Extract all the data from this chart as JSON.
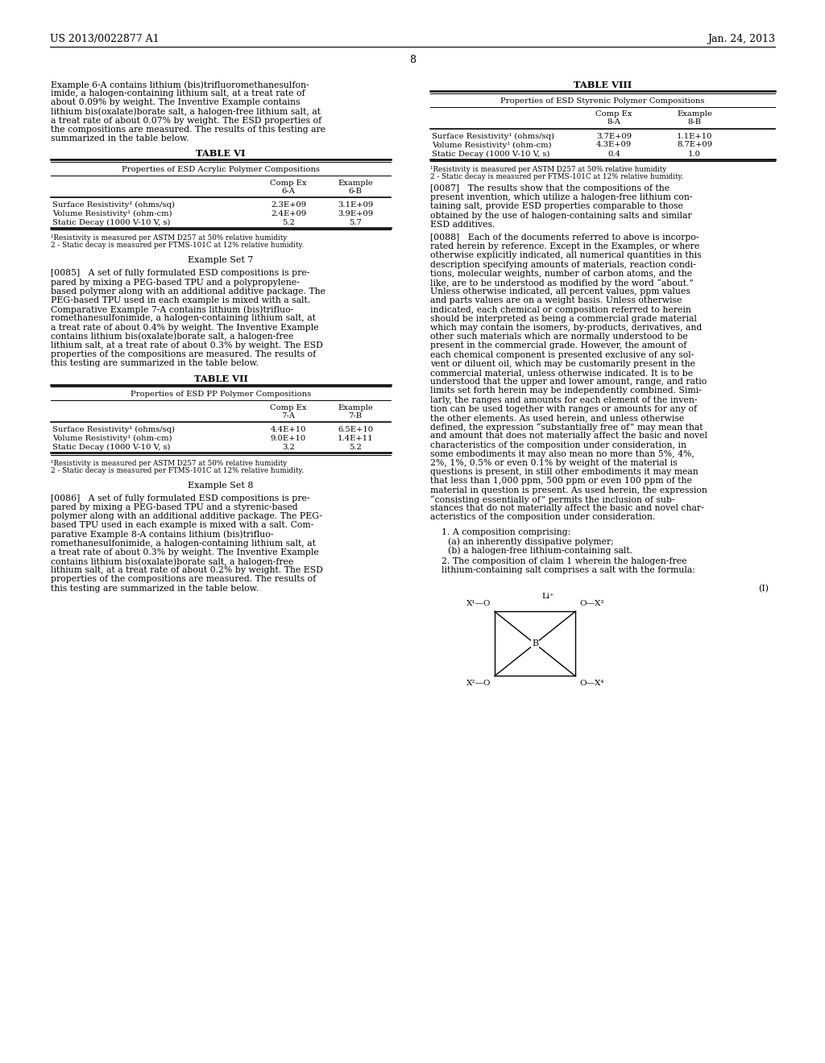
{
  "bg_color": "#ffffff",
  "header_left": "US 2013/0022877 A1",
  "header_right": "Jan. 24, 2013",
  "page_number": "8",
  "left_col": {
    "para1_lines": [
      "Example 6-A contains lithium (bis)trifluoromethanesulfon-",
      "imide, a halogen-containing lithium salt, at a treat rate of",
      "about 0.09% by weight. The Inventive Example contains",
      "lithium bis(oxalate)borate salt, a halogen-free lithium salt, at",
      "a treat rate of about 0.07% by weight. The ESD properties of",
      "the compositions are measured. The results of this testing are",
      "summarized in the table below."
    ],
    "table_vi_title": "TABLE VI",
    "table_vi_subtitle": "Properties of ESD Acrylic Polymer Compositions",
    "table_vi_col2": "Comp Ex\n6-A",
    "table_vi_col3": "Example\n6-B",
    "table_vi_rows": [
      [
        "Surface Resistivity¹ (ohms/sq)",
        "2.3E+09",
        "3.1E+09"
      ],
      [
        "Volume Resistivity¹ (ohm-cm)",
        "2.4E+09",
        "3.9E+09"
      ],
      [
        "Static Decay (1000 V-10 V, s)",
        "5.2",
        "5.7"
      ]
    ],
    "table_vi_fn1": "¹Resistivity is measured per ASTM D257 at 50% relative humidity",
    "table_vi_fn2": "2 - Static decay is measured per FTMS-101C at 12% relative humidity.",
    "ex7_title": "Example Set 7",
    "para_0085_lines": [
      "[0085]   A set of fully formulated ESD compositions is pre-",
      "pared by mixing a PEG-based TPU and a polypropylene-",
      "based polymer along with an additional additive package. The",
      "PEG-based TPU used in each example is mixed with a salt.",
      "Comparative Example 7-A contains lithium (bis)trifluo-",
      "romethanesulfonimide, a halogen-containing lithium salt, at",
      "a treat rate of about 0.4% by weight. The Inventive Example",
      "contains lithium bis(oxalate)borate salt, a halogen-free",
      "lithium salt, at a treat rate of about 0.3% by weight. The ESD",
      "properties of the compositions are measured. The results of",
      "this testing are summarized in the table below."
    ],
    "table_vii_title": "TABLE VII",
    "table_vii_subtitle": "Properties of ESD PP Polymer Compositions",
    "table_vii_col2": "Comp Ex\n7-A",
    "table_vii_col3": "Example\n7-B",
    "table_vii_rows": [
      [
        "Surface Resistivity¹ (ohms/sq)",
        "4.4E+10",
        "6.5E+10"
      ],
      [
        "Volume Resistivity¹ (ohm-cm)",
        "9.0E+10",
        "1.4E+11"
      ],
      [
        "Static Decay (1000 V-10 V, s)",
        "3.2",
        "5.2"
      ]
    ],
    "table_vii_fn1": "¹Resistivity is measured per ASTM D257 at 50% relative humidity",
    "table_vii_fn2": "2 - Static decay is measured per FTMS-101C at 12% relative humidity.",
    "ex8_title": "Example Set 8",
    "para_0086_lines": [
      "[0086]   A set of fully formulated ESD compositions is pre-",
      "pared by mixing a PEG-based TPU and a styrenic-based",
      "polymer along with an additional additive package. The PEG-",
      "based TPU used in each example is mixed with a salt. Com-",
      "parative Example 8-A contains lithium (bis)trifluo-",
      "romethanesulfonimide, a halogen-containing lithium salt, at",
      "a treat rate of about 0.3% by weight. The Inventive Example",
      "contains lithium bis(oxalate)borate salt, a halogen-free",
      "lithium salt, at a treat rate of about 0.2% by weight. The ESD",
      "properties of the compositions are measured. The results of",
      "this testing are summarized in the table below."
    ]
  },
  "right_col": {
    "table_viii_title": "TABLE VIII",
    "table_viii_subtitle": "Properties of ESD Styrenic Polymer Compositions",
    "table_viii_col2": "Comp Ex\n8-A",
    "table_viii_col3": "Example\n8-B",
    "table_viii_rows": [
      [
        "Surface Resistivity¹ (ohms/sq)",
        "3.7E+09",
        "1.1E+10"
      ],
      [
        "Volume Resistivity¹ (ohm-cm)",
        "4.3E+09",
        "8.7E+09"
      ],
      [
        "Static Decay (1000 V-10 V, s)",
        "0.4",
        "1.0"
      ]
    ],
    "table_viii_fn1": "¹Resistivity is measured per ASTM D257 at 50% relative humidity",
    "table_viii_fn2": "2 - Static decay is measured per FTMS-101C at 12% relative humidity.",
    "para_0087_lines": [
      "[0087]   The results show that the compositions of the",
      "present invention, which utilize a halogen-free lithium con-",
      "taining salt, provide ESD properties comparable to those",
      "obtained by the use of halogen-containing salts and similar",
      "ESD additives."
    ],
    "para_0088_lines": [
      "[0088]   Each of the documents referred to above is incorpo-",
      "rated herein by reference. Except in the Examples, or where",
      "otherwise explicitly indicated, all numerical quantities in this",
      "description specifying amounts of materials, reaction condi-",
      "tions, molecular weights, number of carbon atoms, and the",
      "like, are to be understood as modified by the word “about.”",
      "Unless otherwise indicated, all percent values, ppm values",
      "and parts values are on a weight basis. Unless otherwise",
      "indicated, each chemical or composition referred to herein",
      "should be interpreted as being a commercial grade material",
      "which may contain the isomers, by-products, derivatives, and",
      "other such materials which are normally understood to be",
      "present in the commercial grade. However, the amount of",
      "each chemical component is presented exclusive of any sol-",
      "vent or diluent oil, which may be customarily present in the",
      "commercial material, unless otherwise indicated. It is to be",
      "understood that the upper and lower amount, range, and ratio",
      "limits set forth herein may be independently combined. Simi-",
      "larly, the ranges and amounts for each element of the inven-",
      "tion can be used together with ranges or amounts for any of",
      "the other elements. As used herein, and unless otherwise",
      "defined, the expression “substantially free of” may mean that",
      "and amount that does not materially affect the basic and novel",
      "characteristics of the composition under consideration, in",
      "some embodiments it may also mean no more than 5%, 4%,",
      "2%, 1%, 0.5% or even 0.1% by weight of the material is",
      "questions is present, in still other embodiments it may mean",
      "that less than 1,000 ppm, 500 ppm or even 100 ppm of the",
      "material in question is present. As used herein, the expression",
      "“consisting essentially of” permits the inclusion of sub-",
      "stances that do not materially affect the basic and novel char-",
      "acteristics of the composition under consideration."
    ],
    "claim1": "1. A composition comprising:",
    "claim1a": "(a) an inherently dissipative polymer;",
    "claim1b": "(b) a halogen-free lithium-containing salt.",
    "claim2_lines": [
      "2. The composition of claim 1 wherein the halogen-free",
      "lithium-containing salt comprises a salt with the formula:"
    ],
    "formula_label": "(I)"
  }
}
